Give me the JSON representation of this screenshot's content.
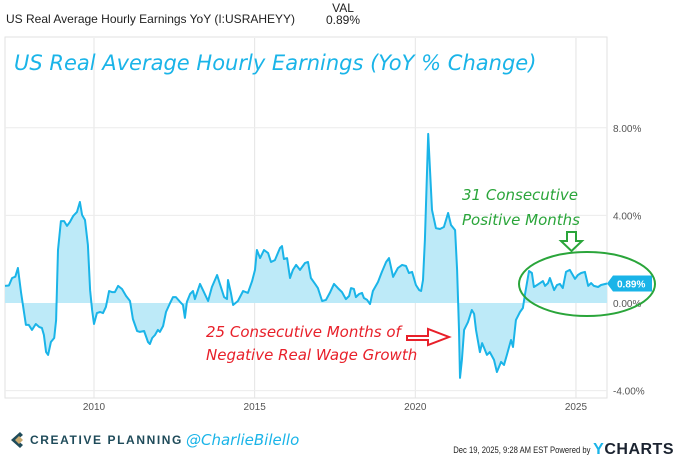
{
  "legend": {
    "series_name": "US Real Average Hourly Earnings YoY (I:USRAHEYY)",
    "column_header": "VAL",
    "value": "0.89%"
  },
  "chart_data": {
    "type": "area",
    "title": "US Real Average Hourly Earnings (YoY % Change)",
    "xlabel": "",
    "ylabel": "",
    "xlim": [
      2007.23,
      2026.1
    ],
    "ylim": [
      -4.5,
      9
    ],
    "x_ticks": [
      {
        "value": 2010,
        "label": "2010"
      },
      {
        "value": 2015,
        "label": "2015"
      },
      {
        "value": 2020,
        "label": "2020"
      },
      {
        "value": 2025,
        "label": "2025"
      }
    ],
    "y_ticks": [
      {
        "value": 8,
        "label": "8.00%"
      },
      {
        "value": 4,
        "label": "4.00%"
      },
      {
        "value": 0,
        "label": "0.00%"
      },
      {
        "value": -4,
        "label": "-4.00%"
      }
    ],
    "grid": true,
    "last_value_label": "0.89%",
    "series": [
      {
        "name": "US Real Average Hourly Earnings YoY",
        "color": "#1ab4e8",
        "fill": "#bdeaf8",
        "points": [
          [
            2007.23,
            0.78
          ],
          [
            2007.35,
            0.8
          ],
          [
            2007.45,
            1.14
          ],
          [
            2007.55,
            1.2
          ],
          [
            2007.63,
            1.6
          ],
          [
            2007.73,
            0.46
          ],
          [
            2007.88,
            -1.0
          ],
          [
            2007.97,
            -1.0
          ],
          [
            2008.07,
            -1.23
          ],
          [
            2008.19,
            -0.96
          ],
          [
            2008.3,
            -1.1
          ],
          [
            2008.38,
            -1.14
          ],
          [
            2008.44,
            -1.46
          ],
          [
            2008.51,
            -2.24
          ],
          [
            2008.57,
            -2.37
          ],
          [
            2008.66,
            -1.78
          ],
          [
            2008.76,
            -1.6
          ],
          [
            2008.82,
            -0.78
          ],
          [
            2008.88,
            2.42
          ],
          [
            2008.97,
            3.74
          ],
          [
            2009.07,
            3.74
          ],
          [
            2009.16,
            3.52
          ],
          [
            2009.25,
            3.7
          ],
          [
            2009.35,
            3.97
          ],
          [
            2009.47,
            4.16
          ],
          [
            2009.56,
            4.61
          ],
          [
            2009.63,
            4.02
          ],
          [
            2009.72,
            3.79
          ],
          [
            2009.81,
            2.65
          ],
          [
            2009.88,
            0.59
          ],
          [
            2009.94,
            -0.32
          ],
          [
            2010.0,
            -0.96
          ],
          [
            2010.09,
            -0.46
          ],
          [
            2010.19,
            -0.41
          ],
          [
            2010.28,
            -0.46
          ],
          [
            2010.37,
            -0.18
          ],
          [
            2010.47,
            0.55
          ],
          [
            2010.56,
            0.5
          ],
          [
            2010.65,
            0.5
          ],
          [
            2010.75,
            0.78
          ],
          [
            2010.87,
            0.64
          ],
          [
            2011.0,
            0.32
          ],
          [
            2011.12,
            0.09
          ],
          [
            2011.21,
            -0.73
          ],
          [
            2011.34,
            -1.28
          ],
          [
            2011.43,
            -1.32
          ],
          [
            2011.56,
            -1.28
          ],
          [
            2011.68,
            -1.78
          ],
          [
            2011.74,
            -1.87
          ],
          [
            2011.81,
            -1.6
          ],
          [
            2011.9,
            -1.46
          ],
          [
            2011.99,
            -1.23
          ],
          [
            2012.05,
            -1.32
          ],
          [
            2012.15,
            -1.05
          ],
          [
            2012.24,
            -0.41
          ],
          [
            2012.37,
            0.0
          ],
          [
            2012.46,
            0.27
          ],
          [
            2012.55,
            0.27
          ],
          [
            2012.68,
            0.05
          ],
          [
            2012.77,
            -0.09
          ],
          [
            2012.83,
            -0.68
          ],
          [
            2012.89,
            0.05
          ],
          [
            2012.99,
            0.41
          ],
          [
            2013.08,
            0.55
          ],
          [
            2013.14,
            0.18
          ],
          [
            2013.3,
            0.87
          ],
          [
            2013.42,
            0.5
          ],
          [
            2013.55,
            0.09
          ],
          [
            2013.67,
            0.73
          ],
          [
            2013.83,
            1.28
          ],
          [
            2013.92,
            0.87
          ],
          [
            2014.05,
            0.27
          ],
          [
            2014.14,
            0.18
          ],
          [
            2014.17,
            1.05
          ],
          [
            2014.26,
            0.46
          ],
          [
            2014.33,
            -0.09
          ],
          [
            2014.48,
            0.09
          ],
          [
            2014.64,
            0.55
          ],
          [
            2014.79,
            0.46
          ],
          [
            2014.92,
            1.0
          ],
          [
            2015.01,
            1.51
          ],
          [
            2015.07,
            2.42
          ],
          [
            2015.17,
            2.05
          ],
          [
            2015.29,
            2.42
          ],
          [
            2015.42,
            2.28
          ],
          [
            2015.51,
            1.87
          ],
          [
            2015.63,
            1.96
          ],
          [
            2015.79,
            2.51
          ],
          [
            2015.85,
            2.6
          ],
          [
            2015.91,
            2.01
          ],
          [
            2016.01,
            2.05
          ],
          [
            2016.1,
            1.14
          ],
          [
            2016.19,
            1.51
          ],
          [
            2016.29,
            1.74
          ],
          [
            2016.41,
            1.51
          ],
          [
            2016.57,
            1.83
          ],
          [
            2016.66,
            1.87
          ],
          [
            2016.75,
            1.14
          ],
          [
            2016.88,
            0.87
          ],
          [
            2016.97,
            0.68
          ],
          [
            2017.1,
            0.09
          ],
          [
            2017.22,
            0.14
          ],
          [
            2017.35,
            0.5
          ],
          [
            2017.47,
            0.87
          ],
          [
            2017.59,
            0.68
          ],
          [
            2017.72,
            0.5
          ],
          [
            2017.84,
            0.18
          ],
          [
            2017.94,
            0.32
          ],
          [
            2018.0,
            0.68
          ],
          [
            2018.09,
            0.64
          ],
          [
            2018.15,
            0.27
          ],
          [
            2018.25,
            0.41
          ],
          [
            2018.34,
            0.46
          ],
          [
            2018.4,
            0.23
          ],
          [
            2018.5,
            0.14
          ],
          [
            2018.59,
            -0.05
          ],
          [
            2018.68,
            0.55
          ],
          [
            2018.84,
            0.96
          ],
          [
            2018.96,
            1.42
          ],
          [
            2019.09,
            1.87
          ],
          [
            2019.18,
            2.05
          ],
          [
            2019.31,
            1.19
          ],
          [
            2019.46,
            1.6
          ],
          [
            2019.59,
            1.74
          ],
          [
            2019.71,
            1.69
          ],
          [
            2019.8,
            1.37
          ],
          [
            2019.9,
            1.42
          ],
          [
            2020.02,
            0.82
          ],
          [
            2020.12,
            0.59
          ],
          [
            2020.18,
            0.55
          ],
          [
            2020.24,
            1.05
          ],
          [
            2020.3,
            2.88
          ],
          [
            2020.4,
            7.72
          ],
          [
            2020.52,
            4.25
          ],
          [
            2020.64,
            3.42
          ],
          [
            2020.77,
            3.38
          ],
          [
            2020.89,
            3.47
          ],
          [
            2021.02,
            4.11
          ],
          [
            2021.11,
            3.56
          ],
          [
            2021.24,
            3.33
          ],
          [
            2021.3,
            1.51
          ],
          [
            2021.36,
            -1.23
          ],
          [
            2021.39,
            -3.42
          ],
          [
            2021.45,
            -2.6
          ],
          [
            2021.52,
            -1.23
          ],
          [
            2021.64,
            -0.87
          ],
          [
            2021.76,
            -0.32
          ],
          [
            2021.83,
            -0.5
          ],
          [
            2021.89,
            -1.23
          ],
          [
            2022.01,
            -2.24
          ],
          [
            2022.08,
            -1.83
          ],
          [
            2022.14,
            -2.05
          ],
          [
            2022.23,
            -2.37
          ],
          [
            2022.32,
            -2.24
          ],
          [
            2022.45,
            -2.6
          ],
          [
            2022.54,
            -3.15
          ],
          [
            2022.67,
            -2.69
          ],
          [
            2022.76,
            -2.83
          ],
          [
            2022.85,
            -2.37
          ],
          [
            2022.98,
            -1.69
          ],
          [
            2023.04,
            -2.01
          ],
          [
            2023.13,
            -0.78
          ],
          [
            2023.26,
            -0.41
          ],
          [
            2023.35,
            -0.23
          ],
          [
            2023.41,
            0.37
          ],
          [
            2023.54,
            1.46
          ],
          [
            2023.63,
            1.37
          ],
          [
            2023.69,
            0.73
          ],
          [
            2023.79,
            0.82
          ],
          [
            2023.88,
            0.91
          ],
          [
            2023.97,
            1.0
          ],
          [
            2024.04,
            0.78
          ],
          [
            2024.13,
            0.91
          ],
          [
            2024.19,
            1.14
          ],
          [
            2024.32,
            0.59
          ],
          [
            2024.41,
            0.82
          ],
          [
            2024.5,
            0.87
          ],
          [
            2024.59,
            0.68
          ],
          [
            2024.69,
            1.42
          ],
          [
            2024.81,
            1.51
          ],
          [
            2024.97,
            1.1
          ],
          [
            2025.06,
            1.28
          ],
          [
            2025.16,
            1.37
          ],
          [
            2025.28,
            1.42
          ],
          [
            2025.38,
            0.78
          ],
          [
            2025.47,
            0.91
          ],
          [
            2025.56,
            0.78
          ],
          [
            2025.69,
            0.73
          ],
          [
            2025.78,
            0.82
          ],
          [
            2025.97,
            0.89
          ]
        ]
      }
    ],
    "annotations": [
      {
        "lines": [
          "25 Consecutive Months of",
          "Negative Real Wage Growth"
        ],
        "color": "#e8202a"
      },
      {
        "lines": [
          "31 Consecutive",
          "Positive Months"
        ],
        "color": "#2aa53a"
      }
    ]
  },
  "footer": {
    "brand": "CREATIVE PLANNING",
    "handle": "@CharlieBilello",
    "timestamp": "Dec 19, 2025, 9:28 AM EST Powered by",
    "provider_y": "Y",
    "provider_rest": "CHARTS"
  }
}
